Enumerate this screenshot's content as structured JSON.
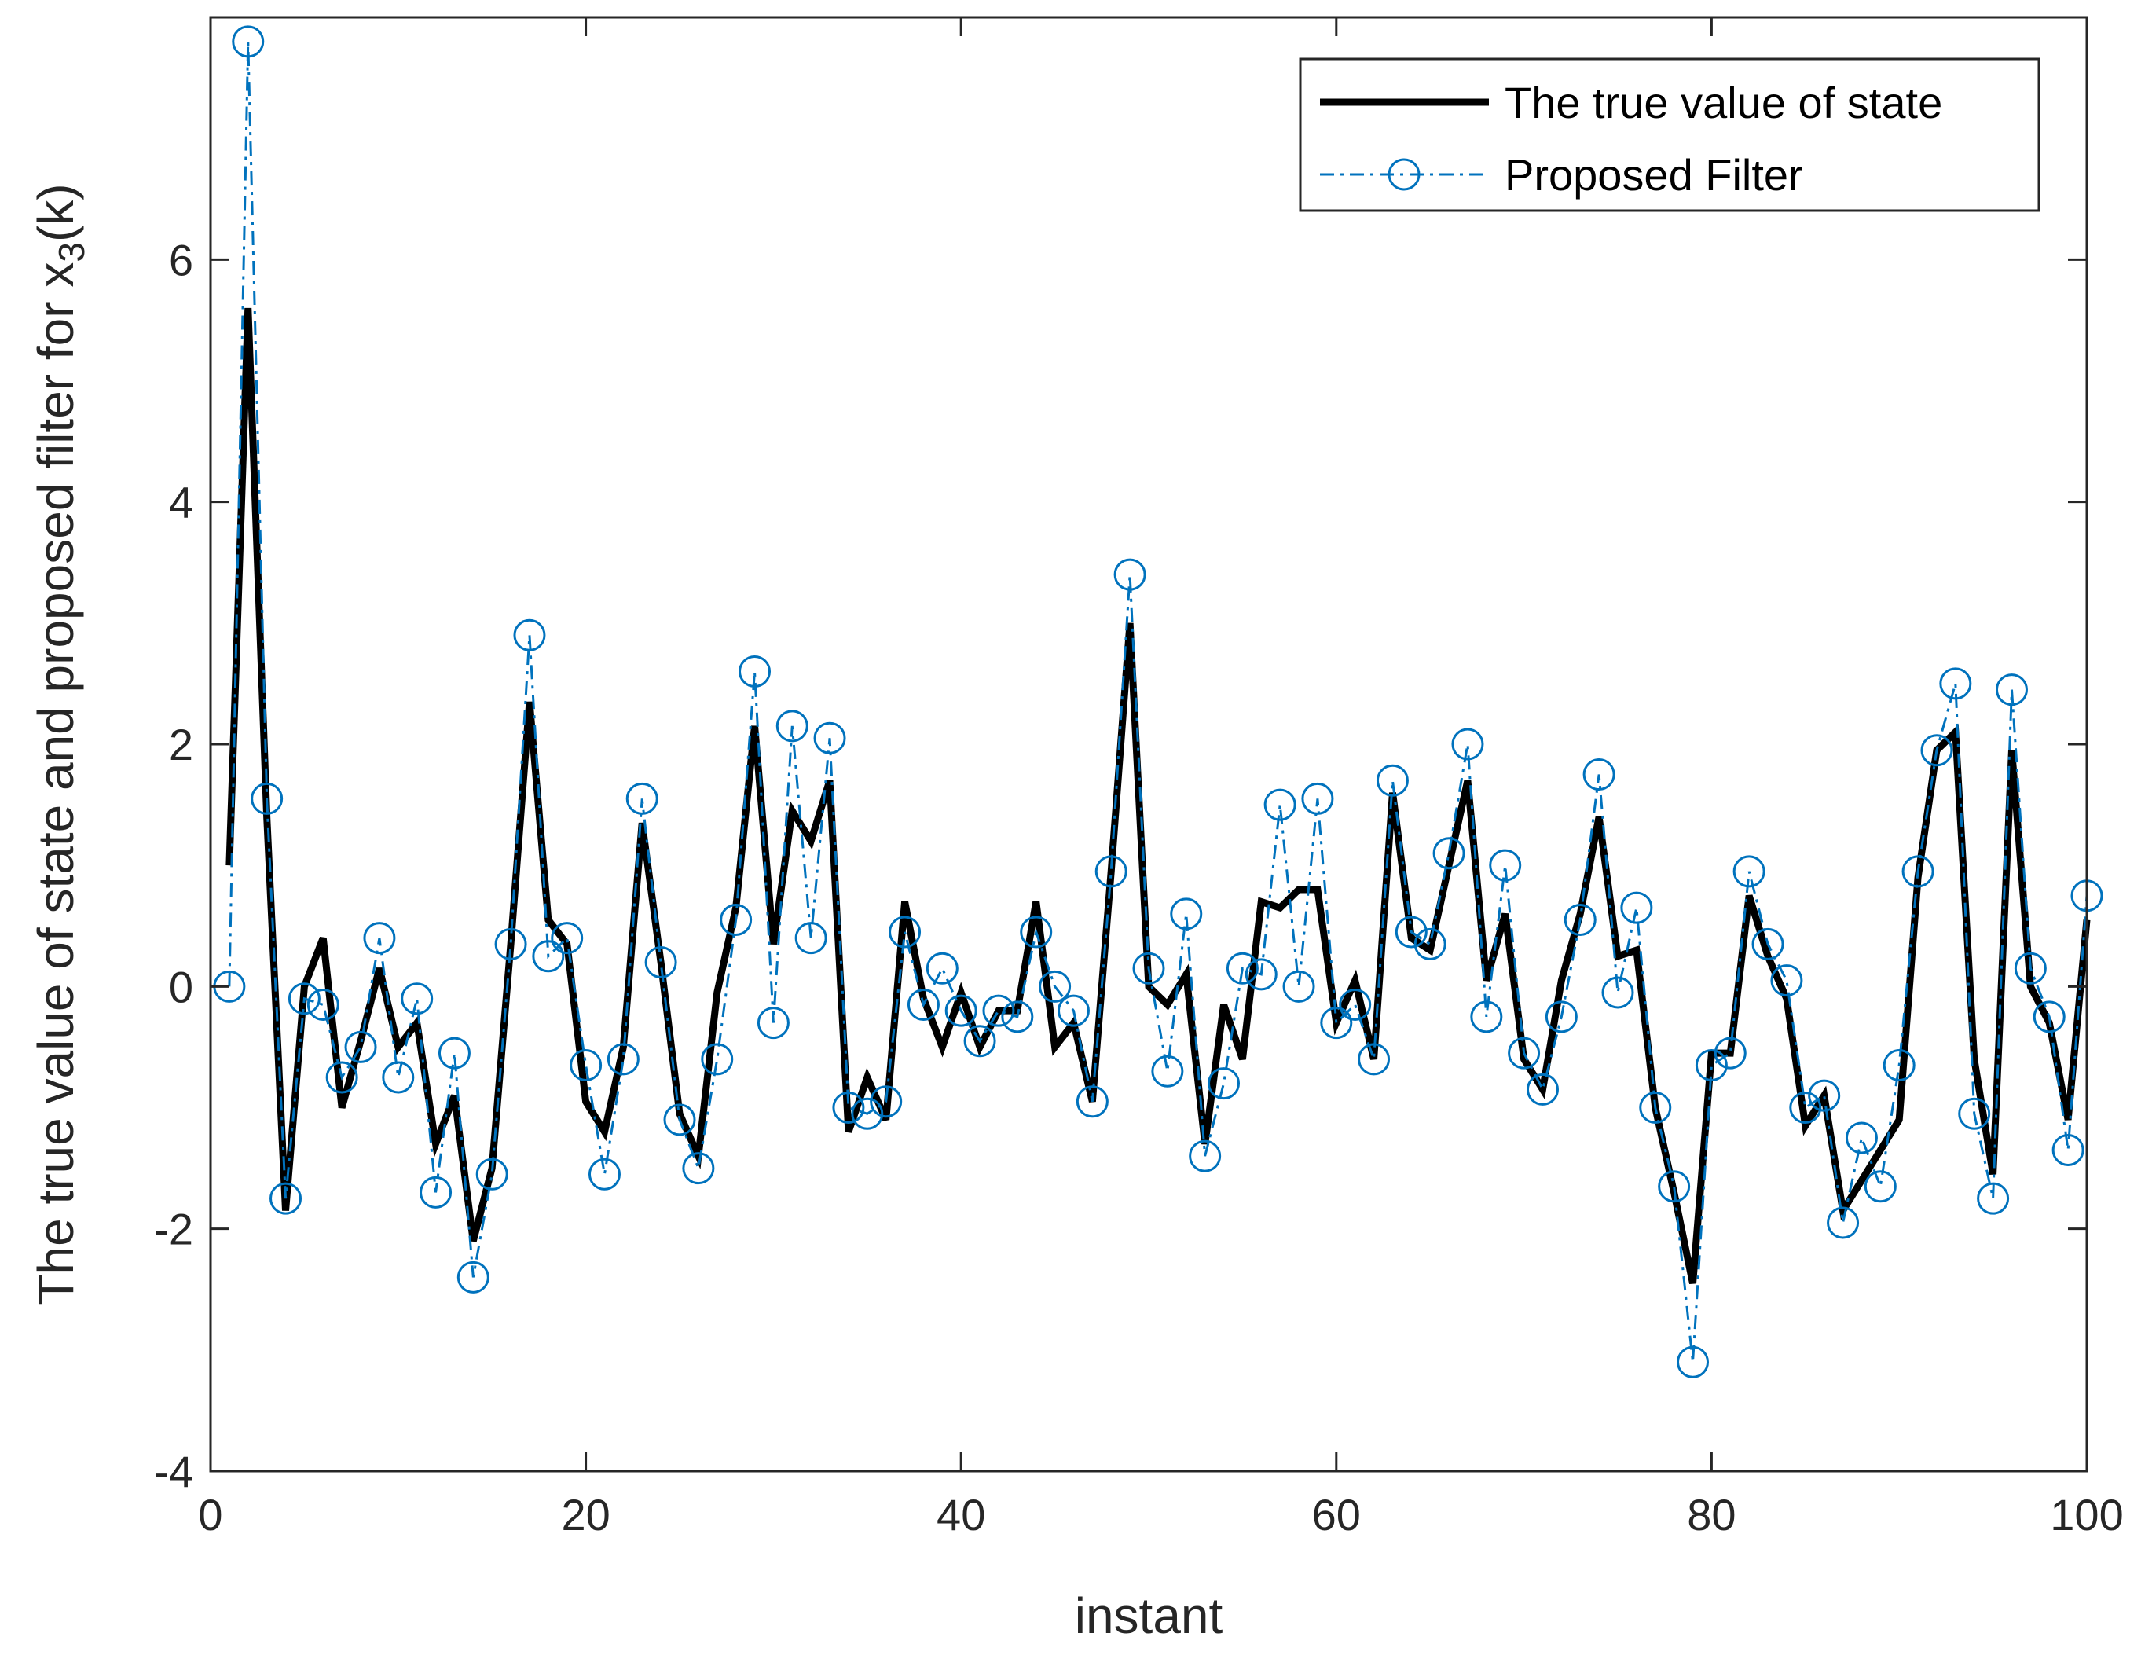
{
  "chart_data": {
    "type": "line",
    "title": "",
    "xlabel": "instant",
    "ylabel": {
      "main": "The true value of state and proposed filter for x",
      "subscript": "3",
      "suffix": "(k)"
    },
    "xlim": [
      0,
      100
    ],
    "ylim": [
      -4,
      8
    ],
    "xticks": [
      0,
      20,
      40,
      60,
      80,
      100
    ],
    "yticks": [
      -4,
      -2,
      0,
      2,
      4,
      6
    ],
    "grid": false,
    "legend_position": "top-right",
    "x": [
      1,
      2,
      3,
      4,
      5,
      6,
      7,
      8,
      9,
      10,
      11,
      12,
      13,
      14,
      15,
      16,
      17,
      18,
      19,
      20,
      21,
      22,
      23,
      24,
      25,
      26,
      27,
      28,
      29,
      30,
      31,
      32,
      33,
      34,
      35,
      36,
      37,
      38,
      39,
      40,
      41,
      42,
      43,
      44,
      45,
      46,
      47,
      48,
      49,
      50,
      51,
      52,
      53,
      54,
      55,
      56,
      57,
      58,
      59,
      60,
      61,
      62,
      63,
      64,
      65,
      66,
      67,
      68,
      69,
      70,
      71,
      72,
      73,
      74,
      75,
      76,
      77,
      78,
      79,
      80,
      81,
      82,
      83,
      84,
      85,
      86,
      87,
      88,
      89,
      90,
      91,
      92,
      93,
      94,
      95,
      96,
      97,
      98,
      99,
      100
    ],
    "series": [
      {
        "name": "The true value of state",
        "color": "#000000",
        "style": "solid",
        "values": [
          1.0,
          5.6,
          1.4,
          -1.85,
          0.0,
          0.4,
          -1.0,
          -0.45,
          0.15,
          -0.5,
          -0.3,
          -1.3,
          -0.9,
          -2.1,
          -1.5,
          0.35,
          2.35,
          0.55,
          0.35,
          -0.95,
          -1.2,
          -0.5,
          1.35,
          0.2,
          -1.05,
          -1.4,
          -0.05,
          0.65,
          2.15,
          0.35,
          1.45,
          1.2,
          1.7,
          -1.2,
          -0.75,
          -1.1,
          0.7,
          -0.1,
          -0.5,
          -0.05,
          -0.5,
          -0.2,
          -0.2,
          0.7,
          -0.5,
          -0.3,
          -0.95,
          0.95,
          3.0,
          0.0,
          -0.15,
          0.1,
          -1.3,
          -0.15,
          -0.6,
          0.7,
          0.65,
          0.8,
          0.8,
          -0.3,
          0.05,
          -0.6,
          1.6,
          0.4,
          0.3,
          1.0,
          1.7,
          0.05,
          0.6,
          -0.6,
          -0.85,
          0.05,
          0.6,
          1.4,
          0.25,
          0.3,
          -1.0,
          -1.7,
          -2.45,
          -0.55,
          -0.55,
          0.75,
          0.25,
          -0.1,
          -1.15,
          -0.9,
          -1.85,
          -1.6,
          -1.35,
          -1.1,
          0.9,
          1.95,
          2.1,
          -0.6,
          -1.55,
          1.95,
          0.0,
          -0.3,
          -1.1,
          0.55
        ]
      },
      {
        "name": "Proposed Filter",
        "color": "#0072BD",
        "style": "dash-dot",
        "marker": "circle",
        "values": [
          0.0,
          7.8,
          1.55,
          -1.75,
          -0.1,
          -0.15,
          -0.75,
          -0.5,
          0.4,
          -0.75,
          -0.1,
          -1.7,
          -0.55,
          -2.4,
          -1.55,
          0.35,
          2.9,
          0.25,
          0.4,
          -0.65,
          -1.55,
          -0.6,
          1.55,
          0.2,
          -1.1,
          -1.5,
          -0.6,
          0.55,
          2.6,
          -0.3,
          2.15,
          0.4,
          2.05,
          -1.0,
          -1.05,
          -0.95,
          0.45,
          -0.15,
          0.15,
          -0.2,
          -0.45,
          -0.2,
          -0.25,
          0.45,
          0.0,
          -0.2,
          -0.95,
          0.95,
          3.4,
          0.15,
          -0.7,
          0.6,
          -1.4,
          -0.8,
          0.15,
          0.1,
          1.5,
          0.0,
          1.55,
          -0.3,
          -0.15,
          -0.6,
          1.7,
          0.45,
          0.35,
          1.1,
          2.0,
          -0.25,
          1.0,
          -0.55,
          -0.85,
          -0.25,
          0.55,
          1.75,
          -0.05,
          0.65,
          -1.0,
          -1.65,
          -3.1,
          -0.65,
          -0.55,
          0.95,
          0.35,
          0.05,
          -1.0,
          -0.9,
          -1.95,
          -1.25,
          -1.65,
          -0.65,
          0.95,
          1.95,
          2.5,
          -1.05,
          -1.75,
          2.45,
          0.15,
          -0.25,
          -1.35,
          0.75
        ]
      }
    ]
  }
}
